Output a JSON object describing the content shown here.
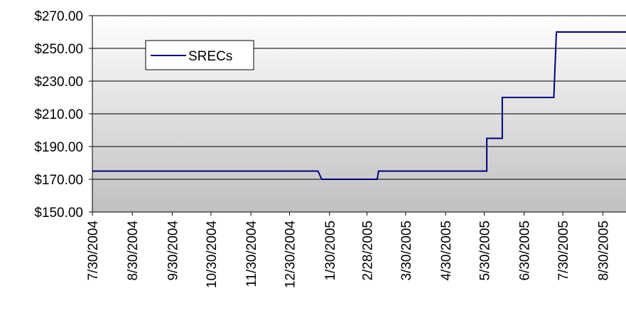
{
  "chart_data": {
    "type": "line",
    "x": [
      "2004-07-30",
      "2005-01-21",
      "2005-01-24",
      "2005-03-08",
      "2005-03-09",
      "2005-06-01",
      "2005-06-01",
      "2005-06-13",
      "2005-06-13",
      "2005-07-23",
      "2005-07-25",
      "2005-09-17"
    ],
    "series": [
      {
        "name": "SRECs",
        "color": "#000080",
        "values": [
          175,
          175,
          170,
          170,
          175,
          175,
          195,
          195,
          220,
          220,
          260,
          260
        ]
      }
    ],
    "xlim": [
      "2004-07-30",
      "2005-09-17"
    ],
    "xticks": [
      {
        "value": "2004-07-30",
        "label": "7/30/2004"
      },
      {
        "value": "2004-08-30",
        "label": "8/30/2004"
      },
      {
        "value": "2004-09-30",
        "label": "9/30/2004"
      },
      {
        "value": "2004-10-30",
        "label": "10/30/2004"
      },
      {
        "value": "2004-11-30",
        "label": "11/30/2004"
      },
      {
        "value": "2004-12-30",
        "label": "12/30/2004"
      },
      {
        "value": "2005-01-30",
        "label": "1/30/2005"
      },
      {
        "value": "2005-02-28",
        "label": "2/28/2005"
      },
      {
        "value": "2005-03-30",
        "label": "3/30/2005"
      },
      {
        "value": "2005-04-30",
        "label": "4/30/2005"
      },
      {
        "value": "2005-05-30",
        "label": "5/30/2005"
      },
      {
        "value": "2005-06-30",
        "label": "6/30/2005"
      },
      {
        "value": "2005-07-30",
        "label": "7/30/2005"
      },
      {
        "value": "2005-08-30",
        "label": "8/30/2005"
      }
    ],
    "ylim": [
      150,
      270
    ],
    "yticks": [
      {
        "value": 150,
        "label": "$150.00"
      },
      {
        "value": 170,
        "label": "$170.00"
      },
      {
        "value": 190,
        "label": "$190.00"
      },
      {
        "value": 210,
        "label": "$210.00"
      },
      {
        "value": 230,
        "label": "$230.00"
      },
      {
        "value": 250,
        "label": "$250.00"
      },
      {
        "value": 270,
        "label": "$270.00"
      }
    ],
    "grid": true,
    "legend": "upper left"
  }
}
